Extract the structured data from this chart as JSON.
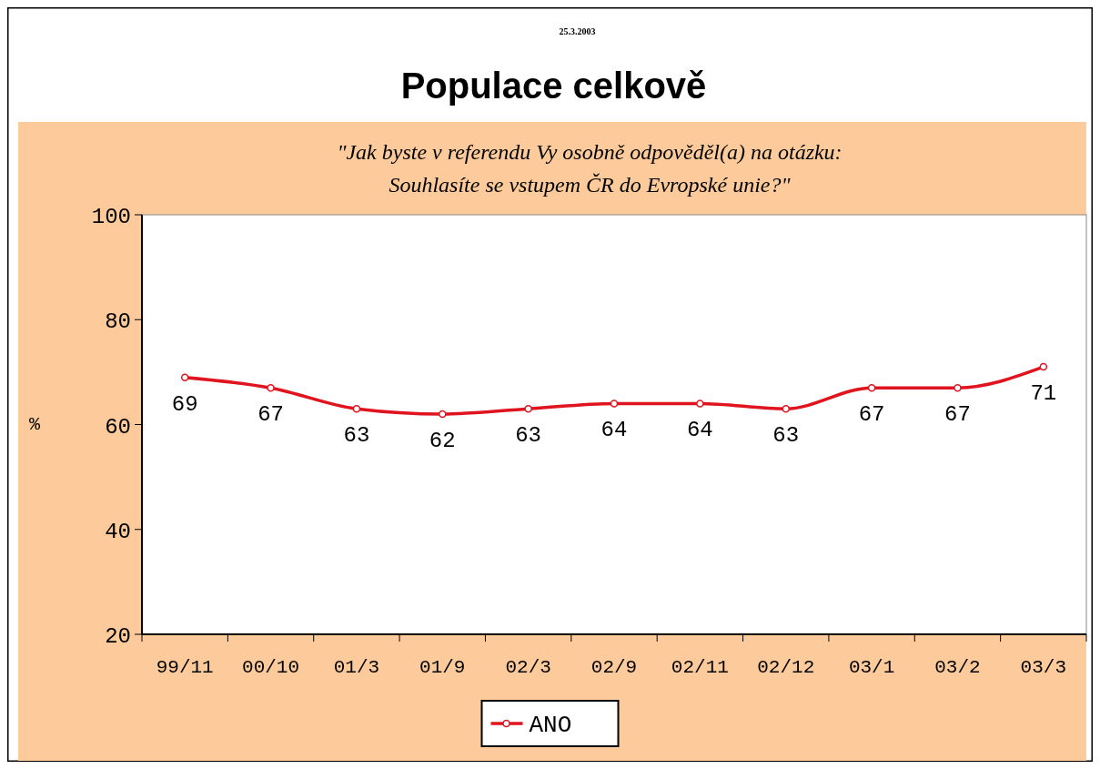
{
  "chart_data": {
    "type": "line",
    "title": "Populace celkově",
    "subtitle": "\"Jak byste v referendu Vy osobně odpověděl(a) na otázku:\nSouhlasíte se vstupem ČR do Evropské unie?\"",
    "annotations": [
      "25.3.2003"
    ],
    "ylabel": "%",
    "categories": [
      "99/11",
      "00/10",
      "01/3",
      "01/9",
      "02/3",
      "02/9",
      "02/11",
      "02/12",
      "03/1",
      "03/2",
      "03/3"
    ],
    "series": [
      {
        "name": "ANO",
        "color": "#e0141e",
        "values": [
          69,
          67,
          63,
          62,
          63,
          64,
          64,
          63,
          67,
          67,
          71
        ]
      }
    ],
    "ylim": [
      20,
      100
    ],
    "yticks": [
      20,
      40,
      60,
      80,
      100
    ],
    "legend": "bottom",
    "marker": "circle",
    "line_style": "solid",
    "data_labels": true
  }
}
